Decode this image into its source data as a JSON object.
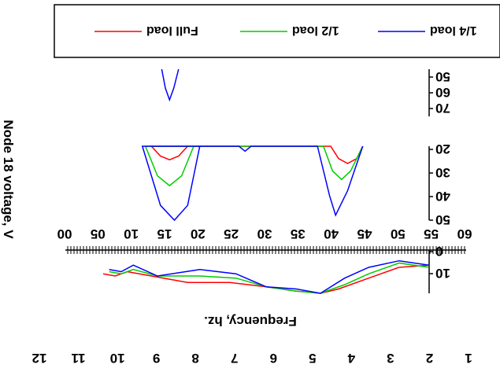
{
  "chart_data": {
    "type": "line",
    "orientation": "rotated 180 degrees (upside-down)",
    "legend": {
      "placement": "top",
      "entries": [
        {
          "label": "Full load",
          "color": "#ff0000"
        },
        {
          "label": "1/2 load",
          "color": "#00cc00"
        },
        {
          "label": "1/4 load",
          "color": "#0000ff"
        }
      ]
    },
    "ylabel": "Node 18 voltage, V",
    "xlabel": "Frequency, hz.",
    "panels": [
      {
        "name": "upper",
        "y_tick_labels": [
          "50",
          "60",
          "70"
        ],
        "series": [
          {
            "name": "1/4 load",
            "x": [
              41.5,
              42.3,
              43.0,
              43.7,
              44.3
            ],
            "y": [
              50,
              58,
              63,
              58,
              50
            ]
          }
        ]
      },
      {
        "name": "middle",
        "y_tick_labels": [
          "20",
          "30",
          "40",
          "50"
        ],
        "x_tick_labels": [
          "60",
          "55",
          "50",
          "45",
          "40",
          "35",
          "30",
          "25",
          "20",
          "15",
          "10",
          "05",
          "00"
        ],
        "series": [
          {
            "name": "Full load",
            "x": [
              40.0,
              41.5,
              43.0,
              44.5,
              46.0,
              16.3,
              15.0,
              13.5,
              12.0,
              11.0
            ],
            "y": [
              20,
              24,
              25.5,
              24,
              20,
              20,
              25,
              27,
              25,
              20
            ]
          },
          {
            "name": "1/2 load",
            "x": [
              39.0,
              41.0,
              43.0,
              45.0,
              47.0,
              17.5,
              16.0,
              14.5,
              13.0,
              11.0
            ],
            "y": [
              20,
              32,
              36,
              32,
              20,
              20,
              30,
              33.5,
              30,
              20
            ]
          },
          {
            "name": "1/4 load",
            "x": [
              38.0,
              40.0,
              42.2,
              44.5,
              47.5,
              31.5,
              30.5,
              29.5,
              18.5,
              16.5,
              15.5,
              13.5,
              11.0
            ],
            "y": [
              20,
              44,
              50,
              44,
              20,
              20,
              22,
              20,
              20,
              40,
              48,
              38,
              20
            ]
          }
        ]
      },
      {
        "name": "lower",
        "y_tick_labels": [
          "0",
          "10"
        ],
        "series": [
          {
            "name": "Full load",
            "x": [
              0,
              5,
              10,
              15,
              18,
              22,
              27,
              33,
              40,
              48,
              50,
              52,
              54
            ],
            "y": [
              7,
              8,
              13,
              18,
              20,
              19,
              17,
              15,
              15,
              11,
              10,
              12,
              11
            ]
          },
          {
            "name": "1/2 load",
            "x": [
              0,
              5,
              10,
              14,
              18,
              22,
              27,
              32,
              38,
              45,
              49,
              51,
              53
            ],
            "y": [
              8,
              6,
              11,
              16,
              20,
              19,
              17,
              13,
              12,
              12,
              9,
              11,
              10
            ]
          },
          {
            "name": "1/4 load",
            "x": [
              0,
              5,
              10,
              14,
              18,
              22,
              27,
              32,
              38,
              45,
              49,
              51,
              53
            ],
            "y": [
              7,
              5,
              8,
              13,
              20,
              18,
              17,
              11,
              9,
              12,
              7,
              10,
              9
            ]
          }
        ]
      }
    ],
    "bottom_tick_labels": [
      "1",
      "2",
      "3",
      "4",
      "5",
      "6",
      "7",
      "8",
      "9",
      "10",
      "11",
      "12"
    ]
  }
}
